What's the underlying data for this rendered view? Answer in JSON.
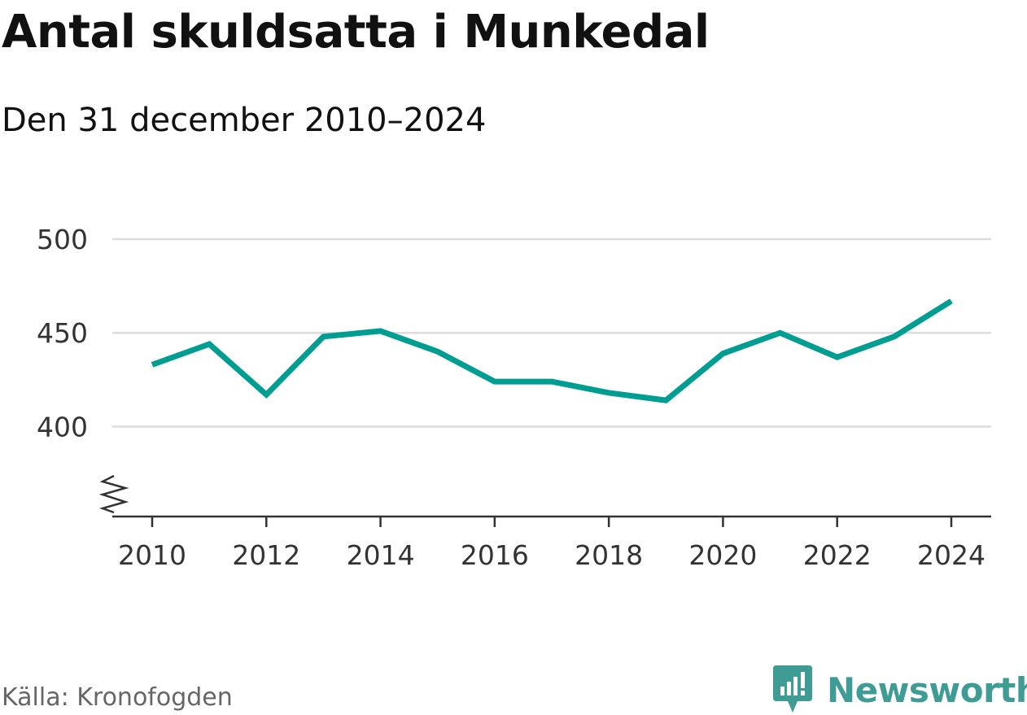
{
  "title": "Antal skuldsatta i Munkedal",
  "subtitle": "Den 31 december 2010–2024",
  "source": "Källa: Kronofogden",
  "brand": {
    "name": "Newsworthy",
    "icon": "newsworthy-logo-icon",
    "color": "#3f9c95"
  },
  "chart_data": {
    "type": "line",
    "title": "Antal skuldsatta i Munkedal",
    "subtitle": "Den 31 december 2010–2024",
    "xlabel": "",
    "ylabel": "",
    "x": [
      2010,
      2011,
      2012,
      2013,
      2014,
      2015,
      2016,
      2017,
      2018,
      2019,
      2020,
      2021,
      2022,
      2023,
      2024
    ],
    "series": [
      {
        "name": "Antal skuldsatta",
        "color": "#009e92",
        "values": [
          433,
          444,
          417,
          448,
          451,
          440,
          424,
          424,
          418,
          414,
          439,
          450,
          437,
          448,
          467
        ]
      }
    ],
    "xticks": [
      "2010",
      "2012",
      "2014",
      "2016",
      "2018",
      "2020",
      "2022",
      "2024"
    ],
    "yticks": [
      "400",
      "450",
      "500"
    ],
    "ylim": [
      352,
      500
    ],
    "xlim": [
      2010,
      2024
    ],
    "grid": true,
    "axis_break": true
  }
}
